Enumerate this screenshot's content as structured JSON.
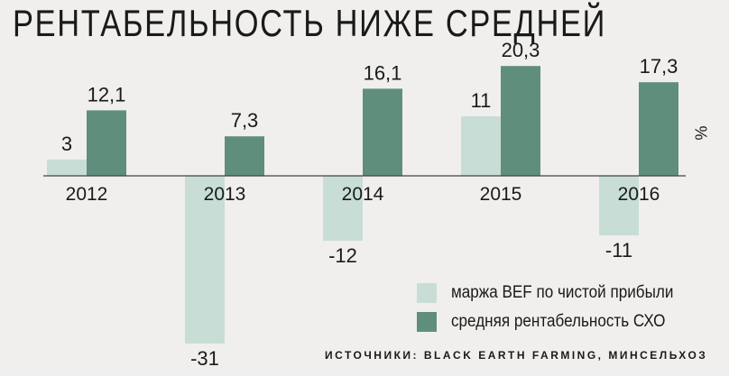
{
  "chart_data": {
    "type": "bar",
    "title": "РЕНТАБЕЛЬНОСТЬ НИЖЕ СРЕДНЕЙ",
    "categories": [
      "2012",
      "2013",
      "2014",
      "2015",
      "2016"
    ],
    "series": [
      {
        "name": "маржа BEF по чистой прибыли",
        "values": [
          3,
          -31,
          -12,
          11,
          -11
        ],
        "labels": [
          "3",
          "-31",
          "-12",
          "11",
          "-11"
        ],
        "color": "#c8ddd6"
      },
      {
        "name": "средняя рентабельность СХО",
        "values": [
          12.1,
          7.3,
          16.1,
          20.3,
          17.3
        ],
        "labels": [
          "12,1",
          "7,3",
          "16,1",
          "20,3",
          "17,3"
        ],
        "color": "#5f8e7c"
      }
    ],
    "unit": "%",
    "source": "ИСТОЧНИКИ: BLACK EARTH FARMING, МИНСЕЛЬХОЗ",
    "legend_position": "bottom-right",
    "grid": false
  }
}
